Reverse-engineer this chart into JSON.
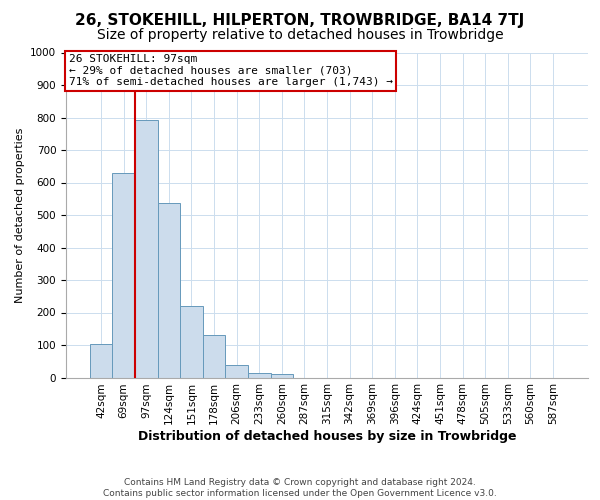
{
  "title": "26, STOKEHILL, HILPERTON, TROWBRIDGE, BA14 7TJ",
  "subtitle": "Size of property relative to detached houses in Trowbridge",
  "xlabel": "Distribution of detached houses by size in Trowbridge",
  "ylabel": "Number of detached properties",
  "categories": [
    "42sqm",
    "69sqm",
    "97sqm",
    "124sqm",
    "151sqm",
    "178sqm",
    "206sqm",
    "233sqm",
    "260sqm",
    "287sqm",
    "315sqm",
    "342sqm",
    "369sqm",
    "396sqm",
    "424sqm",
    "451sqm",
    "478sqm",
    "505sqm",
    "533sqm",
    "560sqm",
    "587sqm"
  ],
  "values": [
    103,
    628,
    793,
    538,
    220,
    131,
    40,
    14,
    10,
    0,
    0,
    0,
    0,
    0,
    0,
    0,
    0,
    0,
    0,
    0,
    0
  ],
  "bar_color": "#ccdcec",
  "bar_edge_color": "#6699bb",
  "property_line_index": 2,
  "property_line_color": "#cc0000",
  "annotation_line1": "26 STOKEHILL: 97sqm",
  "annotation_line2": "← 29% of detached houses are smaller (703)",
  "annotation_line3": "71% of semi-detached houses are larger (1,743) →",
  "annotation_box_color": "#ffffff",
  "annotation_box_edge_color": "#cc0000",
  "ylim": [
    0,
    1000
  ],
  "yticks": [
    0,
    100,
    200,
    300,
    400,
    500,
    600,
    700,
    800,
    900,
    1000
  ],
  "grid_color": "#ccddee",
  "background_color": "#ffffff",
  "footer_line1": "Contains HM Land Registry data © Crown copyright and database right 2024.",
  "footer_line2": "Contains public sector information licensed under the Open Government Licence v3.0.",
  "title_fontsize": 11,
  "subtitle_fontsize": 10,
  "xlabel_fontsize": 9,
  "ylabel_fontsize": 8,
  "tick_fontsize": 7.5,
  "annotation_fontsize": 8,
  "footer_fontsize": 6.5
}
